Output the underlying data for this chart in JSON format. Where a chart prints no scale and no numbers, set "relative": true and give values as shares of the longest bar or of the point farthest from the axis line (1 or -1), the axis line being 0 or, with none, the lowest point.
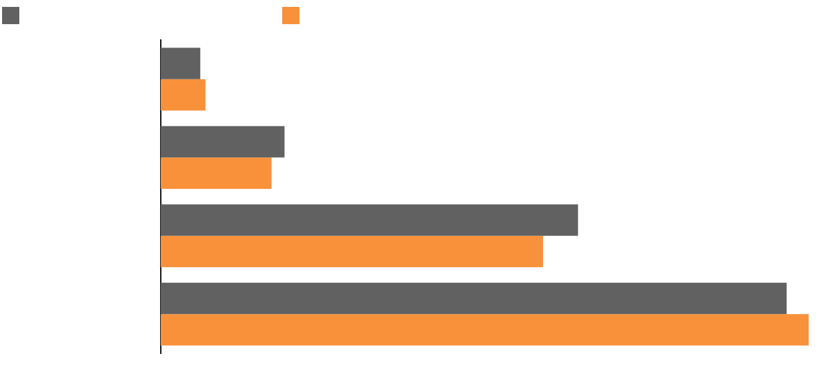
{
  "chart_data": {
    "type": "bar",
    "orientation": "horizontal",
    "relative": true,
    "categories": [
      null,
      null,
      null,
      null
    ],
    "series": [
      {
        "color": "#616161",
        "values": [
          0.061,
          0.191,
          0.644,
          0.966
        ]
      },
      {
        "color": "#f8913a",
        "values": [
          0.069,
          0.171,
          0.59,
          1
        ]
      }
    ],
    "tick_labels": false
  }
}
